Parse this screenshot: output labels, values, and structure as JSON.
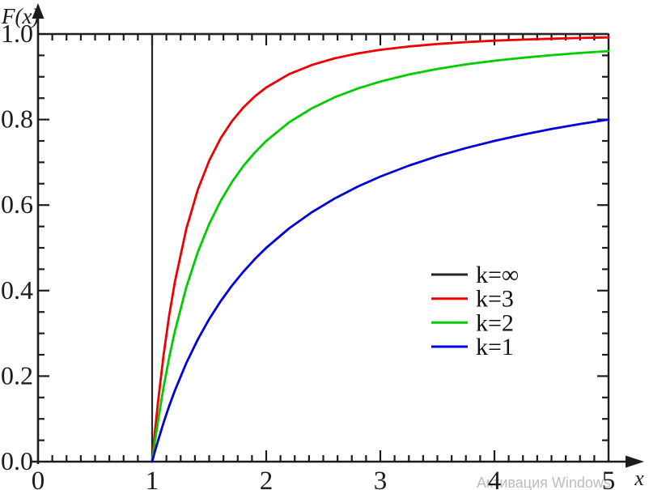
{
  "chart_data": {
    "type": "line",
    "title": "",
    "xlabel": "x",
    "ylabel": "F(x)",
    "xlim": [
      0,
      5
    ],
    "ylim": [
      0.0,
      1.0
    ],
    "grid": false,
    "axis_color": "#1c1c1c",
    "x_major_ticks": [
      0,
      1,
      2,
      3,
      4,
      5
    ],
    "x_tick_labels": [
      "0",
      "1",
      "2",
      "3",
      "4",
      "5"
    ],
    "x_minor_divisions": 8,
    "y_major_ticks": [
      0.0,
      0.2,
      0.4,
      0.6,
      0.8,
      1.0
    ],
    "y_tick_labels": [
      "0.0",
      "0.2",
      "0.4",
      "0.6",
      "0.8",
      "1.0"
    ],
    "y_minor_divisions": 4,
    "legend_position": "center-right",
    "series": [
      {
        "id": "k-inf",
        "name": "k=∞",
        "color": "#262626",
        "stroke_width": 2.2,
        "points": [
          [
            1,
            0
          ],
          [
            1,
            1
          ],
          [
            5,
            1
          ]
        ]
      },
      {
        "id": "k-3",
        "name": "k=3",
        "color": "#ee0000",
        "stroke_width": 2.8,
        "points": [
          [
            1,
            0
          ],
          [
            1.025,
            0.0713
          ],
          [
            1.05,
            0.1362
          ],
          [
            1.1,
            0.2487
          ],
          [
            1.15,
            0.3425
          ],
          [
            1.2,
            0.4213
          ],
          [
            1.3,
            0.5448
          ],
          [
            1.4,
            0.6356
          ],
          [
            1.5,
            0.7037
          ],
          [
            1.6,
            0.7559
          ],
          [
            1.7,
            0.7964
          ],
          [
            1.8,
            0.8285
          ],
          [
            1.9,
            0.8542
          ],
          [
            2,
            0.875
          ],
          [
            2.2,
            0.9061
          ],
          [
            2.4,
            0.9277
          ],
          [
            2.6,
            0.9431
          ],
          [
            2.8,
            0.9545
          ],
          [
            3,
            0.963
          ],
          [
            3.25,
            0.9709
          ],
          [
            3.5,
            0.9767
          ],
          [
            3.75,
            0.981
          ],
          [
            4,
            0.9844
          ],
          [
            4.25,
            0.987
          ],
          [
            4.5,
            0.989
          ],
          [
            4.75,
            0.9907
          ],
          [
            5,
            0.992
          ]
        ]
      },
      {
        "id": "k-2",
        "name": "k=2",
        "color": "#00cc00",
        "stroke_width": 2.8,
        "points": [
          [
            1,
            0
          ],
          [
            1.025,
            0.0482
          ],
          [
            1.05,
            0.093
          ],
          [
            1.1,
            0.1736
          ],
          [
            1.15,
            0.2439
          ],
          [
            1.2,
            0.3056
          ],
          [
            1.3,
            0.4083
          ],
          [
            1.4,
            0.4898
          ],
          [
            1.5,
            0.5556
          ],
          [
            1.6,
            0.6094
          ],
          [
            1.7,
            0.654
          ],
          [
            1.8,
            0.6914
          ],
          [
            1.9,
            0.723
          ],
          [
            2,
            0.75
          ],
          [
            2.2,
            0.7934
          ],
          [
            2.4,
            0.8264
          ],
          [
            2.6,
            0.8521
          ],
          [
            2.8,
            0.8724
          ],
          [
            3,
            0.8889
          ],
          [
            3.25,
            0.9053
          ],
          [
            3.5,
            0.9184
          ],
          [
            3.75,
            0.9289
          ],
          [
            4,
            0.9375
          ],
          [
            4.25,
            0.9446
          ],
          [
            4.5,
            0.9506
          ],
          [
            4.75,
            0.9557
          ],
          [
            5,
            0.96
          ]
        ]
      },
      {
        "id": "k-1",
        "name": "k=1",
        "color": "#0000dd",
        "stroke_width": 2.8,
        "points": [
          [
            1,
            0
          ],
          [
            1.025,
            0.0244
          ],
          [
            1.05,
            0.0476
          ],
          [
            1.1,
            0.0909
          ],
          [
            1.15,
            0.1304
          ],
          [
            1.2,
            0.1667
          ],
          [
            1.3,
            0.2308
          ],
          [
            1.4,
            0.2857
          ],
          [
            1.5,
            0.3333
          ],
          [
            1.6,
            0.375
          ],
          [
            1.7,
            0.4118
          ],
          [
            1.8,
            0.4444
          ],
          [
            1.9,
            0.4737
          ],
          [
            2,
            0.5
          ],
          [
            2.2,
            0.5455
          ],
          [
            2.4,
            0.5833
          ],
          [
            2.6,
            0.6154
          ],
          [
            2.8,
            0.6429
          ],
          [
            3,
            0.6667
          ],
          [
            3.25,
            0.6923
          ],
          [
            3.5,
            0.7143
          ],
          [
            3.75,
            0.7333
          ],
          [
            4,
            0.75
          ],
          [
            4.25,
            0.7647
          ],
          [
            4.5,
            0.7778
          ],
          [
            4.75,
            0.7895
          ],
          [
            5,
            0.8
          ]
        ]
      }
    ]
  },
  "legend": {
    "labels": [
      "k=∞",
      "k=3",
      "k=2",
      "k=1"
    ],
    "text_color": "#111111"
  },
  "watermark": {
    "text": "Активация Windows",
    "color": "#bcbcbc"
  }
}
